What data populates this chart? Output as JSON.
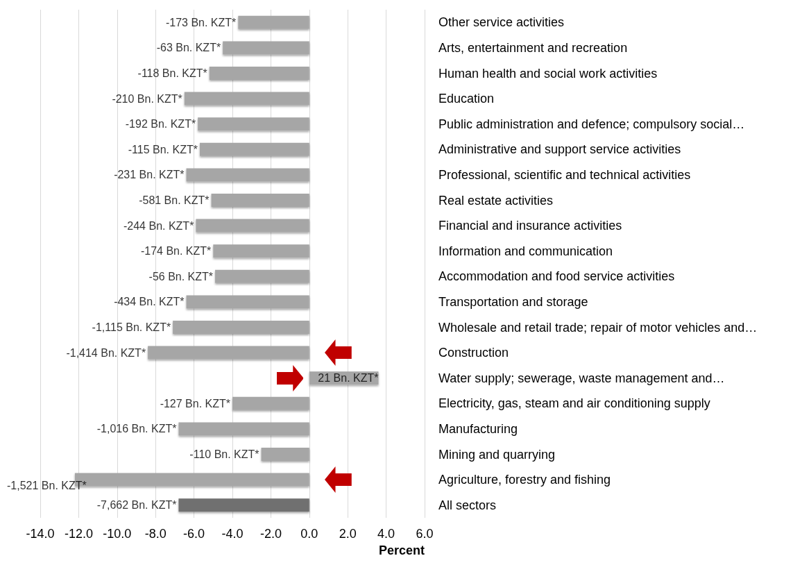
{
  "chart_data": {
    "type": "bar",
    "orientation": "horizontal",
    "xlabel": "Percent",
    "categories": [
      "Other service activities",
      "Arts, entertainment and recreation",
      "Human health and social work activities",
      "Education",
      "Public administration and defence; compulsory social…",
      "Administrative and support service activities",
      "Professional, scientific and technical activities",
      "Real estate activities",
      "Financial and insurance activities",
      "Information and communication",
      "Accommodation and food service activities",
      "Transportation and storage",
      "Wholesale and retail trade; repair of motor vehicles and…",
      "Construction",
      "Water supply; sewerage, waste management and…",
      "Electricity, gas, steam and air conditioning supply",
      "Manufacturing",
      "Mining and quarrying",
      "Agriculture, forestry and fishing",
      "All sectors"
    ],
    "values": [
      -3.7,
      -4.5,
      -5.2,
      -6.5,
      -5.8,
      -5.7,
      -6.4,
      -5.1,
      -5.9,
      -5.0,
      -4.9,
      -6.4,
      -7.1,
      -8.4,
      3.6,
      -4.0,
      -6.8,
      -2.5,
      -12.2,
      -6.8
    ],
    "colors": [
      "#a6a6a6",
      "#a6a6a6",
      "#a6a6a6",
      "#a6a6a6",
      "#a6a6a6",
      "#a6a6a6",
      "#a6a6a6",
      "#a6a6a6",
      "#a6a6a6",
      "#a6a6a6",
      "#a6a6a6",
      "#a6a6a6",
      "#a6a6a6",
      "#a6a6a6",
      "#a6a6a6",
      "#a6a6a6",
      "#a6a6a6",
      "#a6a6a6",
      "#a6a6a6",
      "#6f6f6f"
    ],
    "annotations": [
      {
        "text": "-173 Bn. KZT*",
        "x": -3.7,
        "y": "Other service activities"
      },
      {
        "text": "-63 Bn. KZT*",
        "x": -4.5,
        "y": "Arts, entertainment and recreation"
      },
      {
        "text": "-118 Bn. KZT*",
        "x": -5.2,
        "y": "Human health and social work activities"
      },
      {
        "text": "-210 Bn. KZT*",
        "x": -6.5,
        "y": "Education"
      },
      {
        "text": "-192 Bn. KZT*",
        "x": -5.8,
        "y": "Public administration and defence; compulsory social…"
      },
      {
        "text": "-115 Bn. KZT*",
        "x": -5.7,
        "y": "Administrative and support service activities"
      },
      {
        "text": "-231 Bn. KZT*",
        "x": -6.4,
        "y": "Professional, scientific and technical activities"
      },
      {
        "text": "-581 Bn. KZT*",
        "x": -5.1,
        "y": "Real estate activities"
      },
      {
        "text": "-244 Bn. KZT*",
        "x": -5.9,
        "y": "Financial and insurance activities"
      },
      {
        "text": "-174 Bn. KZT*",
        "x": -5.0,
        "y": "Information and communication"
      },
      {
        "text": "-56 Bn. KZT*",
        "x": -4.9,
        "y": "Accommodation and food service activities"
      },
      {
        "text": "-434 Bn. KZT*",
        "x": -6.4,
        "y": "Transportation and storage"
      },
      {
        "text": "-1,115 Bn. KZT*",
        "x": -7.1,
        "y": "Wholesale and retail trade; repair of motor vehicles and…"
      },
      {
        "text": "-1,414 Bn. KZT*",
        "x": -8.4,
        "y": "Construction"
      },
      {
        "text": "21 Bn. KZT*",
        "x": 3.6,
        "y": "Water supply; sewerage, waste management and…"
      },
      {
        "text": "-127 Bn. KZT*",
        "x": -4.0,
        "y": "Electricity, gas, steam and air conditioning supply"
      },
      {
        "text": "-1,016 Bn. KZT*",
        "x": -6.8,
        "y": "Manufacturing"
      },
      {
        "text": "-110 Bn. KZT*",
        "x": -2.5,
        "y": "Mining and quarrying"
      },
      {
        "text": "-1,521 Bn. KZT*",
        "x": -12.2,
        "y": "Agriculture, forestry and fishing"
      },
      {
        "text": "-7,662 Bn. KZT*",
        "x": -6.8,
        "y": "All sectors"
      }
    ],
    "xlim": [
      -14,
      6
    ],
    "xticks": [
      {
        "value": -14,
        "label": "-14.0"
      },
      {
        "value": -12,
        "label": "-12.0"
      },
      {
        "value": -10,
        "label": "-10.0"
      },
      {
        "value": -8,
        "label": "-8.0"
      },
      {
        "value": -6,
        "label": "-6.0"
      },
      {
        "value": -4,
        "label": "-4.0"
      },
      {
        "value": -2,
        "label": "-2.0"
      },
      {
        "value": 0,
        "label": "0.0"
      },
      {
        "value": 2,
        "label": "2.0"
      },
      {
        "value": 4,
        "label": "4.0"
      },
      {
        "value": 6,
        "label": "6.0"
      }
    ],
    "grid": "x"
  }
}
